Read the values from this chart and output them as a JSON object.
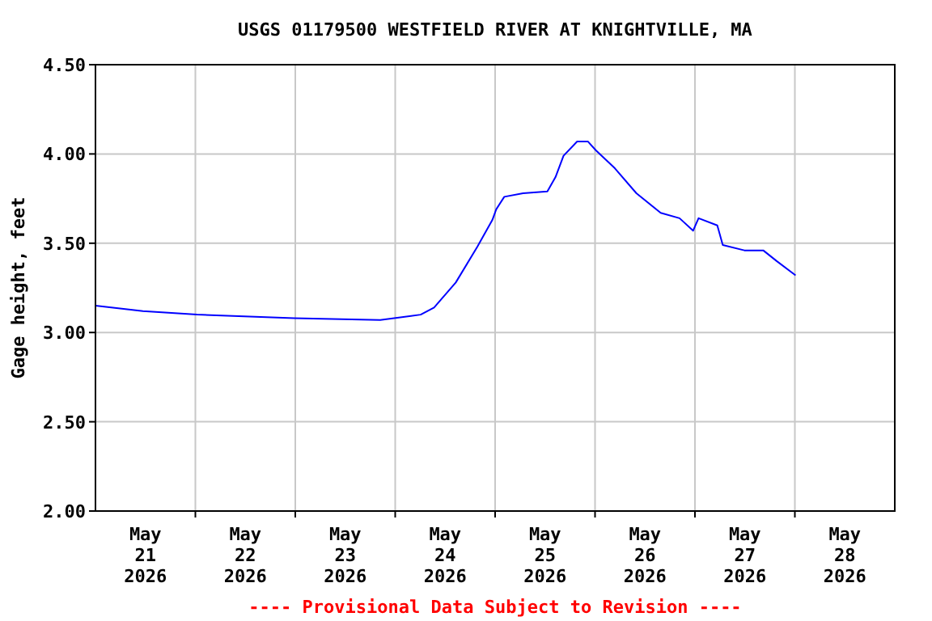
{
  "chart_data": {
    "type": "line",
    "title": "USGS 01179500 WESTFIELD RIVER AT KNIGHTVILLE, MA",
    "ylabel": "Gage height, feet",
    "annotations": [
      "---- Provisional Data Subject to Revision ----"
    ],
    "x": [
      "2026-05-21T00:00",
      "2026-05-21T11:24",
      "2026-05-22T00:22",
      "2026-05-22T23:41",
      "2026-05-23T20:24",
      "2026-05-24T06:07",
      "2026-05-24T09:20",
      "2026-05-24T14:33",
      "2026-05-24T19:43",
      "2026-05-24T23:20",
      "2026-05-25T00:16",
      "2026-05-25T02:12",
      "2026-05-25T06:43",
      "2026-05-25T12:33",
      "2026-05-25T14:30",
      "2026-05-25T16:26",
      "2026-05-25T19:42",
      "2026-05-25T22:16",
      "2026-05-26T00:13",
      "2026-05-26T04:45",
      "2026-05-26T09:56",
      "2026-05-26T15:46",
      "2026-05-26T20:18",
      "2026-05-26T23:33",
      "2026-05-27T00:52",
      "2026-05-27T05:22",
      "2026-05-27T06:41",
      "2026-05-27T11:52",
      "2026-05-27T16:24",
      "2026-05-27T19:38",
      "2026-05-28T00:10"
    ],
    "series": [
      {
        "color": "#0000ff",
        "values": [
          3.15,
          3.12,
          3.1,
          3.08,
          3.07,
          3.1,
          3.14,
          3.28,
          3.48,
          3.63,
          3.69,
          3.76,
          3.78,
          3.79,
          3.87,
          3.99,
          4.07,
          4.07,
          4.02,
          3.92,
          3.78,
          3.67,
          3.64,
          3.57,
          3.64,
          3.6,
          3.49,
          3.46,
          3.46,
          3.4,
          3.32
        ]
      }
    ],
    "xlim": [
      "2026-05-21T00:00",
      "2026-05-29T00:00"
    ],
    "xticks": [
      {
        "value": "2026-05-22T00:00",
        "label": null
      },
      {
        "value": "2026-05-23T00:00",
        "label": null
      },
      {
        "value": "2026-05-24T00:00",
        "label": null
      },
      {
        "value": "2026-05-25T00:00",
        "label": null
      },
      {
        "value": "2026-05-26T00:00",
        "label": null
      },
      {
        "value": "2026-05-27T00:00",
        "label": null
      },
      {
        "value": "2026-05-28T00:00",
        "label": null
      },
      {
        "value": "2026-05-21T12:00",
        "label": "May\n21\n2026"
      },
      {
        "value": "2026-05-22T12:00",
        "label": "May\n22\n2026"
      },
      {
        "value": "2026-05-23T12:00",
        "label": "May\n23\n2026"
      },
      {
        "value": "2026-05-24T12:00",
        "label": "May\n24\n2026"
      },
      {
        "value": "2026-05-25T12:00",
        "label": "May\n25\n2026"
      },
      {
        "value": "2026-05-26T12:00",
        "label": "May\n26\n2026"
      },
      {
        "value": "2026-05-27T12:00",
        "label": "May\n27\n2026"
      },
      {
        "value": "2026-05-28T12:00",
        "label": "May\n28\n2026"
      }
    ],
    "ylim": [
      2,
      4.5
    ],
    "yticks": [
      {
        "value": 2,
        "label": "2.00"
      },
      {
        "value": 2.5,
        "label": "2.50"
      },
      {
        "value": 3,
        "label": "3.00"
      },
      {
        "value": 3.5,
        "label": "3.50"
      },
      {
        "value": 4,
        "label": "4.00"
      },
      {
        "value": 4.5,
        "label": "4.50"
      }
    ],
    "grid": true,
    "line_style": "solid",
    "marker": "none"
  }
}
